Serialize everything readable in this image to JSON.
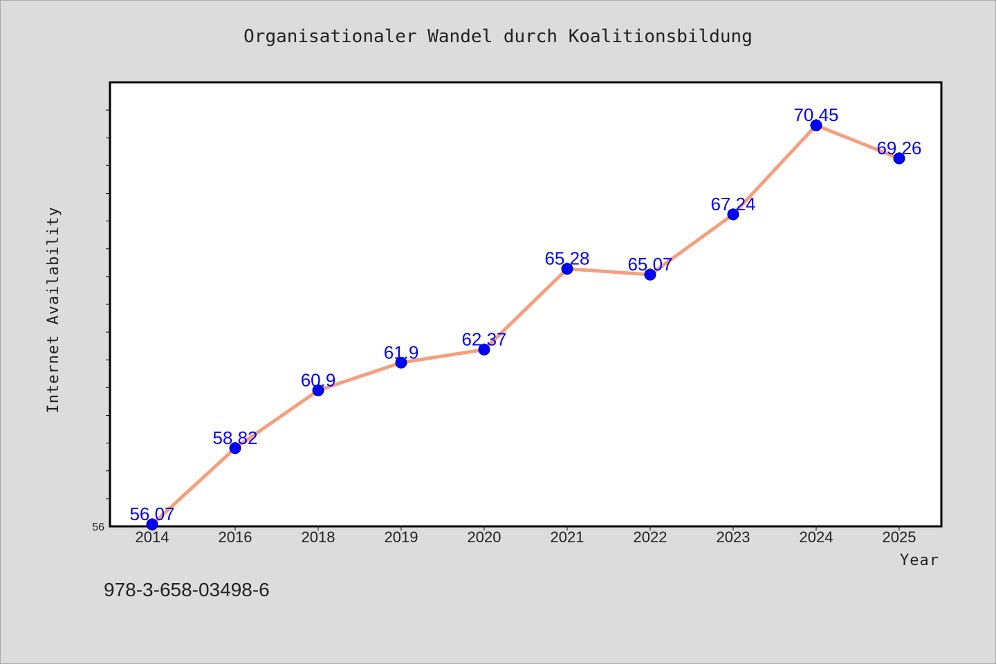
{
  "chart_data": {
    "type": "line",
    "title": "Organisationaler Wandel durch Koalitionsbildung",
    "xlabel": "Year",
    "ylabel": "Internet Availability",
    "categories": [
      "2014",
      "2016",
      "2018",
      "2019",
      "2020",
      "2021",
      "2022",
      "2023",
      "2024",
      "2025"
    ],
    "series": [
      {
        "values": [
          56.07,
          58.82,
          60.9,
          61.9,
          62.37,
          65.28,
          65.07,
          67.24,
          70.45,
          69.26
        ],
        "labels": [
          "56.07",
          "58.82",
          "60.9",
          "61.9",
          "62.37",
          "65.28",
          "65.07",
          "67.24",
          "70.45",
          "69.26"
        ],
        "line_color": "#f4a07f",
        "marker_color": "#0000ff",
        "label_color": "#0000ff"
      }
    ],
    "ylim": [
      56,
      72
    ],
    "yticks_labeled": [
      "56"
    ],
    "grid": false,
    "legend": false
  },
  "footer": {
    "isbn": "978-3-658-03498-6"
  }
}
